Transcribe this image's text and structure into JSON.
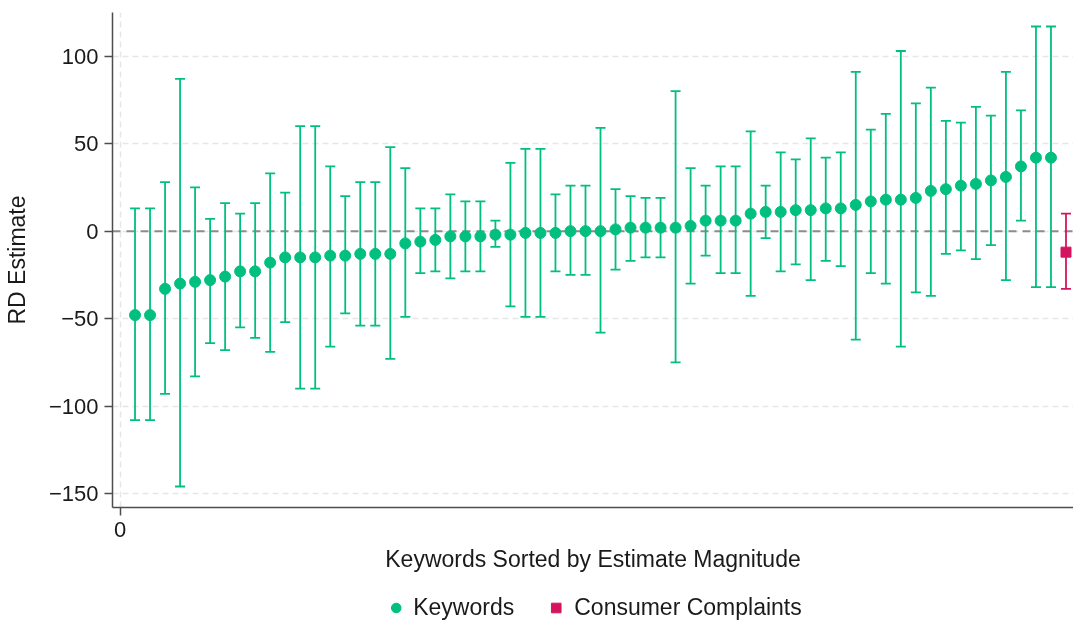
{
  "chart_data": {
    "type": "scatter",
    "xlabel": "Keywords Sorted by Estimate Magnitude",
    "ylabel": "RD Estimate",
    "categories": [
      "0",
      null,
      null,
      null,
      null,
      null,
      null,
      null,
      null,
      null,
      null,
      null,
      null,
      null,
      null,
      null,
      null,
      null,
      null,
      null,
      null,
      null,
      null,
      null,
      null,
      null,
      null,
      null,
      null,
      null,
      null,
      null,
      null,
      null,
      null,
      null,
      null,
      null,
      null,
      null,
      null,
      null,
      null,
      null,
      null,
      null,
      null,
      null,
      null,
      null,
      null,
      null,
      null,
      null,
      null,
      null,
      null,
      null,
      null,
      null,
      null,
      null,
      null,
      null
    ],
    "ylim": [
      -158,
      125
    ],
    "yticks": [
      -150,
      -100,
      -50,
      0,
      50,
      100
    ],
    "grid": true,
    "legend": "bottom",
    "ref_lines": [
      {
        "axis": "y",
        "value": 0,
        "color": "#8c8c8c",
        "line_style": "dashed"
      }
    ],
    "series": [
      {
        "name": "Keywords",
        "color": "#00bf7f",
        "marker": "circle",
        "values": [
          null,
          -48,
          -48,
          -33,
          -30,
          -29,
          -28,
          -26,
          -23,
          -23,
          -18,
          -15,
          -15,
          -15,
          -14,
          -14,
          -13,
          -13,
          -13,
          -7,
          -6,
          -5,
          -3,
          -3,
          -3,
          -2,
          -2,
          -1,
          -1,
          -1,
          0,
          0,
          0,
          1,
          2,
          2,
          2,
          2,
          3,
          6,
          6,
          6,
          10,
          11,
          11,
          12,
          12,
          13,
          13,
          15,
          17,
          18,
          18,
          19,
          23,
          24,
          26,
          27,
          29,
          31,
          37,
          42,
          42,
          null
        ],
        "errors": [
          null,
          [
            -108,
            13
          ],
          [
            -108,
            13
          ],
          [
            -93,
            28
          ],
          [
            -146,
            87
          ],
          [
            -83,
            25
          ],
          [
            -64,
            7
          ],
          [
            -68,
            16
          ],
          [
            -55,
            10
          ],
          [
            -61,
            16
          ],
          [
            -69,
            33
          ],
          [
            -52,
            22
          ],
          [
            -90,
            60
          ],
          [
            -90,
            60
          ],
          [
            -66,
            37
          ],
          [
            -47,
            20
          ],
          [
            -54,
            28
          ],
          [
            -54,
            28
          ],
          [
            -73,
            48
          ],
          [
            -49,
            36
          ],
          [
            -24,
            13
          ],
          [
            -23,
            13
          ],
          [
            -27,
            21
          ],
          [
            -23,
            17
          ],
          [
            -23,
            17
          ],
          [
            -9,
            6
          ],
          [
            -43,
            39
          ],
          [
            -49,
            47
          ],
          [
            -49,
            47
          ],
          [
            -23,
            21
          ],
          [
            -25,
            26
          ],
          [
            -25,
            26
          ],
          [
            -58,
            59
          ],
          [
            -22,
            24
          ],
          [
            -17,
            20
          ],
          [
            -15,
            19
          ],
          [
            -15,
            19
          ],
          [
            -75,
            80
          ],
          [
            -30,
            36
          ],
          [
            -14,
            26
          ],
          [
            -24,
            37
          ],
          [
            -24,
            37
          ],
          [
            -37,
            57
          ],
          [
            -4,
            26
          ],
          [
            -23,
            45
          ],
          [
            -19,
            41
          ],
          [
            -28,
            53
          ],
          [
            -17,
            42
          ],
          [
            -20,
            45
          ],
          [
            -62,
            91
          ],
          [
            -24,
            58
          ],
          [
            -30,
            67
          ],
          [
            -66,
            103
          ],
          [
            -35,
            73
          ],
          [
            -37,
            82
          ],
          [
            -13,
            63
          ],
          [
            -11,
            62
          ],
          [
            -16,
            71
          ],
          [
            -8,
            66
          ],
          [
            -28,
            91
          ],
          [
            6,
            69
          ],
          [
            -32,
            117
          ],
          [
            -32,
            117
          ],
          null
        ]
      },
      {
        "name": "Consumer Complaints",
        "color": "#d5145f",
        "marker": "square",
        "values": [
          null,
          null,
          null,
          null,
          null,
          null,
          null,
          null,
          null,
          null,
          null,
          null,
          null,
          null,
          null,
          null,
          null,
          null,
          null,
          null,
          null,
          null,
          null,
          null,
          null,
          null,
          null,
          null,
          null,
          null,
          null,
          null,
          null,
          null,
          null,
          null,
          null,
          null,
          null,
          null,
          null,
          null,
          null,
          null,
          null,
          null,
          null,
          null,
          null,
          null,
          null,
          null,
          null,
          null,
          null,
          null,
          null,
          null,
          null,
          null,
          null,
          null,
          null,
          -12
        ],
        "errors": [
          null,
          null,
          null,
          null,
          null,
          null,
          null,
          null,
          null,
          null,
          null,
          null,
          null,
          null,
          null,
          null,
          null,
          null,
          null,
          null,
          null,
          null,
          null,
          null,
          null,
          null,
          null,
          null,
          null,
          null,
          null,
          null,
          null,
          null,
          null,
          null,
          null,
          null,
          null,
          null,
          null,
          null,
          null,
          null,
          null,
          null,
          null,
          null,
          null,
          null,
          null,
          null,
          null,
          null,
          null,
          null,
          null,
          null,
          null,
          null,
          null,
          null,
          null,
          [
            -33,
            10
          ]
        ]
      }
    ]
  }
}
